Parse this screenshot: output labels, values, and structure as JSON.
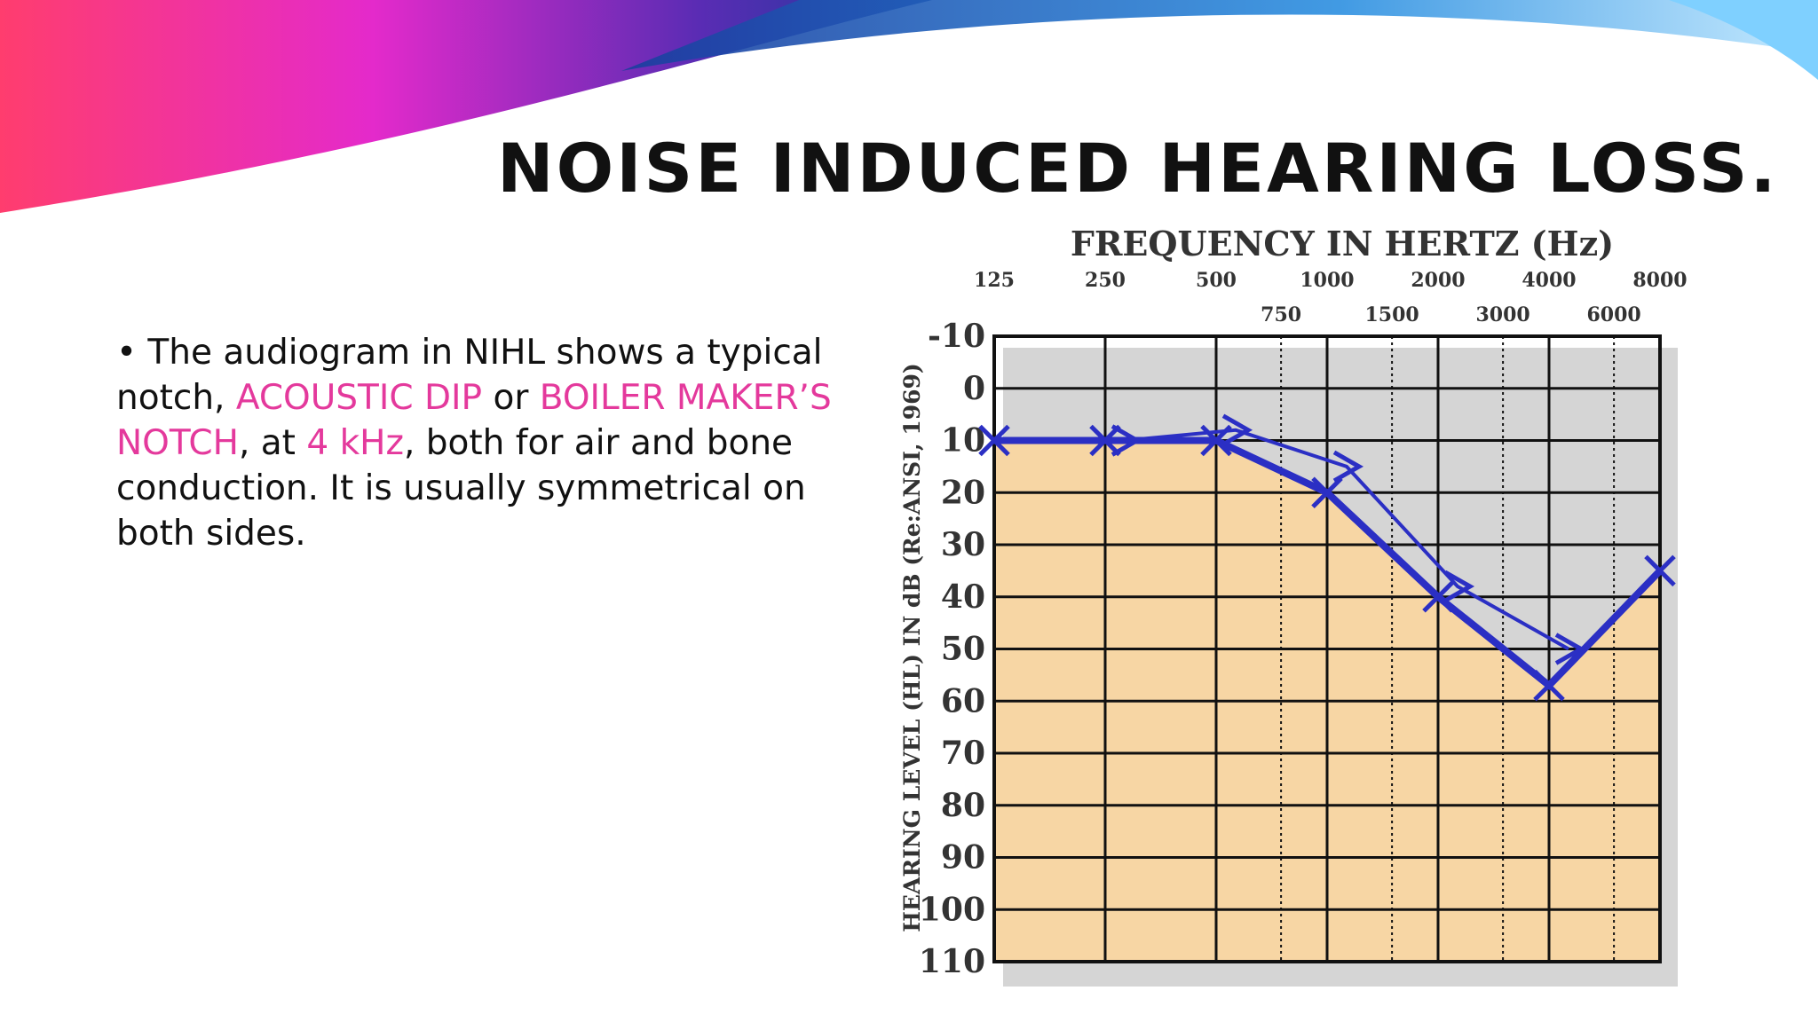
{
  "slide": {
    "title": "NOISE INDUCED HEARING LOSS.",
    "body": [
      "• The audiogram in NIHL shows a typical notch, ",
      "ACOUSTIC DIP",
      " or ",
      "BOILER MAKER’S NOTCH",
      ", at ",
      "4 kHz",
      ", both for air and bone conduction. It is usually symmetrical on both sides."
    ]
  },
  "chart_data": {
    "type": "audiogram",
    "title": "FREQUENCY IN HERTZ (Hz)",
    "y_label": "HEARING LEVEL (HL) IN dB (Re:ANSI, 1969)",
    "x_log": true,
    "y_inverted": true,
    "fill_below": "#f7d6a4",
    "grid": true,
    "xlim": [
      125,
      8000
    ],
    "xticks": [
      125,
      250,
      500,
      750,
      1000,
      1500,
      2000,
      3000,
      4000,
      6000,
      8000
    ],
    "ylim": [
      -10,
      110
    ],
    "yticks": [
      -10,
      0,
      10,
      20,
      30,
      40,
      50,
      60,
      70,
      80,
      90,
      100,
      110
    ],
    "series": [
      {
        "marker": "x",
        "color": "#2b2fc4",
        "x": [
          125,
          250,
          500,
          1000,
          2000,
          4000,
          8000
        ],
        "values": [
          10,
          10,
          10,
          20,
          40,
          57,
          35
        ]
      },
      {
        "marker": ">",
        "color": "#2b2fc4",
        "x": [
          250,
          500,
          1000,
          2000,
          4000
        ],
        "values": [
          10,
          8,
          15,
          38,
          50
        ]
      }
    ]
  }
}
